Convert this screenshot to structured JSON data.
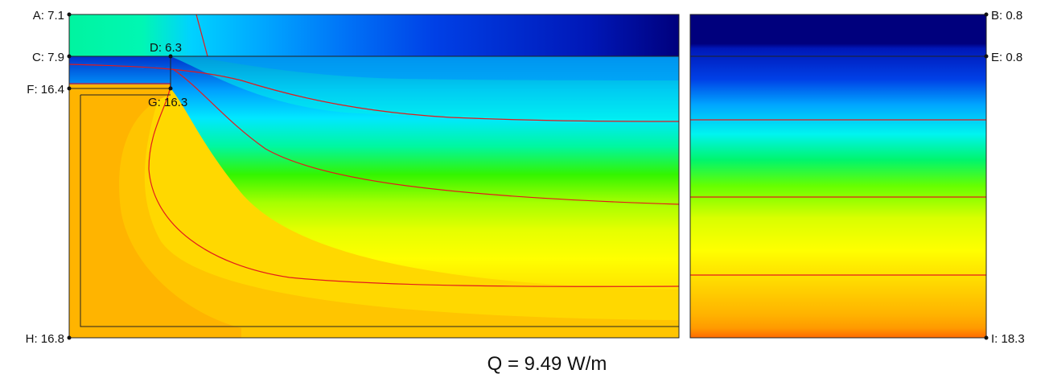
{
  "points": {
    "A": "A: 7.1",
    "B": "B: 0.8",
    "C": "C: 7.9",
    "D": "D: 6.3",
    "E": "E: 0.8",
    "F": "F: 16.4",
    "G": "G: 16.3",
    "H": "H: 16.8",
    "I": "I: 18.3"
  },
  "heat_flow": "Q = 9.49 W/m",
  "colors": {
    "contour_line": "#e31a1c",
    "outline": "#222222",
    "bands_cold_to_warm": [
      "#00007d",
      "#0018b8",
      "#0040e6",
      "#0074f7",
      "#00a6ff",
      "#00d2ff",
      "#00f4f0",
      "#00f7b3",
      "#00f56d",
      "#22f500",
      "#66ff00",
      "#a6ff00",
      "#d9ff00",
      "#f7ff00",
      "#ffff00",
      "#ffee00",
      "#ffd800",
      "#ffc500",
      "#ffb200",
      "#ff9a00",
      "#ff7a00",
      "#ff5b00"
    ]
  }
}
